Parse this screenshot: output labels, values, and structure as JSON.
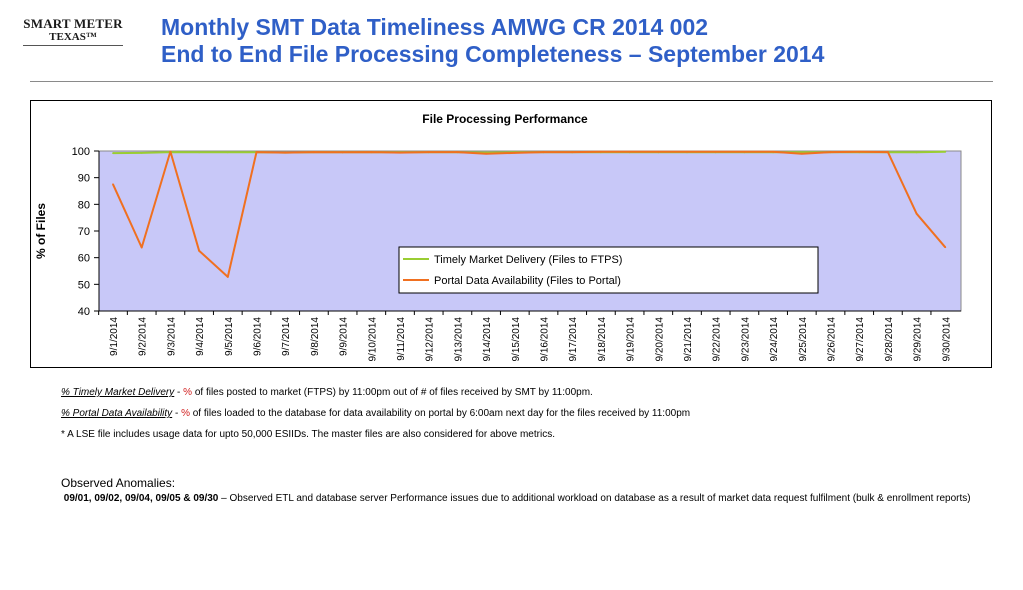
{
  "logo": {
    "line1": "SMART METER",
    "line2": "TEXAS™"
  },
  "title": {
    "line1": "Monthly SMT Data Timeliness AMWG CR 2014 002",
    "line2": "End to End File Processing Completeness – September 2014"
  },
  "colors": {
    "title": "#2f5fc7",
    "plot_bg": "#c8c8f8",
    "timely": "#9acd32",
    "portal": "#f07020"
  },
  "chart_data": {
    "type": "line",
    "title": "File Processing Performance",
    "ylabel": "% of Files",
    "ylim": [
      40,
      100
    ],
    "yticks": [
      40,
      50,
      60,
      70,
      80,
      90,
      100
    ],
    "grid": false,
    "legend_placement": "center-right",
    "categories": [
      "9/1/2014",
      "9/2/2014",
      "9/3/2014",
      "9/4/2014",
      "9/5/2014",
      "9/6/2014",
      "9/7/2014",
      "9/8/2014",
      "9/9/2014",
      "9/10/2014",
      "9/11/2014",
      "9/12/2014",
      "9/13/2014",
      "9/14/2014",
      "9/15/2014",
      "9/16/2014",
      "9/17/2014",
      "9/18/2014",
      "9/19/2014",
      "9/20/2014",
      "9/21/2014",
      "9/22/2014",
      "9/23/2014",
      "9/24/2014",
      "9/25/2014",
      "9/26/2014",
      "9/27/2014",
      "9/28/2014",
      "9/29/2014",
      "9/30/2014"
    ],
    "series": [
      {
        "name": "Timely Market Delivery (Files to FTPS)",
        "color": "#9acd32",
        "values": [
          99.2,
          99.3,
          99.6,
          99.5,
          99.5,
          99.5,
          99.4,
          99.5,
          99.5,
          99.5,
          99.5,
          99.5,
          99.5,
          99.4,
          99.5,
          99.5,
          99.5,
          99.5,
          99.5,
          99.5,
          99.5,
          99.5,
          99.5,
          99.5,
          99.5,
          99.5,
          99.5,
          99.5,
          99.5,
          99.7
        ]
      },
      {
        "name": "Portal Data Availability (Files to Portal)",
        "color": "#f07020",
        "values": [
          87.5,
          63.8,
          99.8,
          62.6,
          52.8,
          99.6,
          99.4,
          99.6,
          99.5,
          99.6,
          99.4,
          99.6,
          99.6,
          99.0,
          99.3,
          99.6,
          99.6,
          99.7,
          99.7,
          99.7,
          99.7,
          99.7,
          99.7,
          99.7,
          99.0,
          99.6,
          99.7,
          99.6,
          76.5,
          63.9
        ]
      }
    ]
  },
  "notes": {
    "timely": {
      "term": "% Timely Market Delivery",
      "dash": " - ",
      "pct": "%",
      "text": " of files posted to market (FTPS) by 11:00pm out of # of files received by SMT by 11:00pm."
    },
    "portal": {
      "term": "% Portal Data Availability",
      "dash": " - ",
      "pct": "%",
      "text": " of files loaded to the database for data availability on portal by 6:00am next day for the files received by 11:00pm"
    },
    "lse": "* A LSE file includes usage data for upto 50,000 ESIIDs. The master files are also considered for above metrics."
  },
  "anomalies": {
    "title": "Observed Anomalies",
    "colon": ":",
    "dates": "09/01, 09/02, 09/04, 09/05 & 09/30",
    "text": "  –  Observed ETL and database server Performance issues due to additional workload on database as a result of market data request fulfilment (bulk & enrollment reports)"
  }
}
